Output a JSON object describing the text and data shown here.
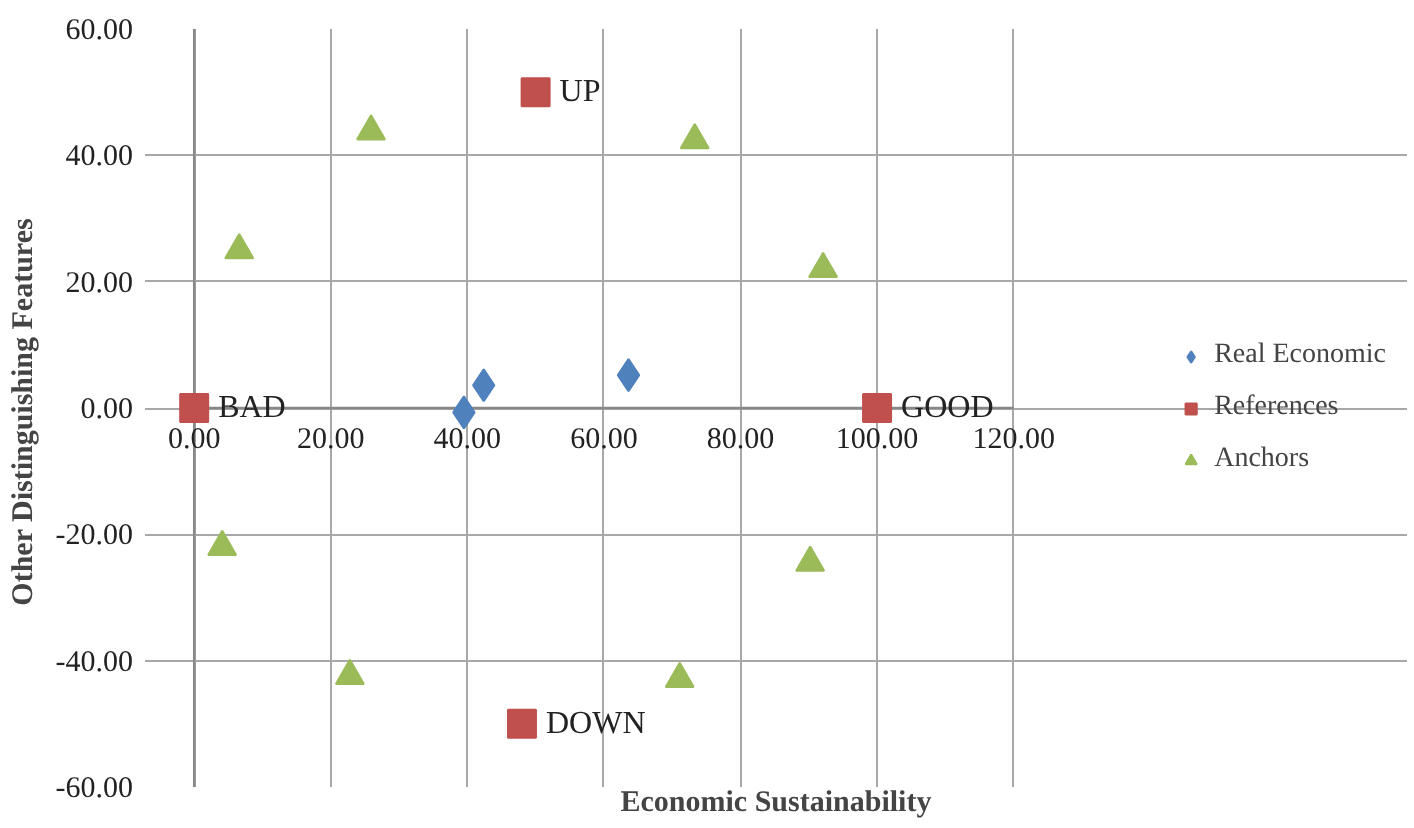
{
  "chart_data": {
    "type": "scatter",
    "xlabel": "Economic Sustainability",
    "ylabel": "Other Distinguishing  Features",
    "xlim": [
      0,
      120
    ],
    "ylim": [
      -60,
      60
    ],
    "xticks": [
      {
        "value": 0,
        "label": "0.00"
      },
      {
        "value": 20,
        "label": "20.00"
      },
      {
        "value": 40,
        "label": "40.00"
      },
      {
        "value": 60,
        "label": "60.00"
      },
      {
        "value": 80,
        "label": "80.00"
      },
      {
        "value": 100,
        "label": "100.00"
      },
      {
        "value": 120,
        "label": "120.00"
      }
    ],
    "yticks": [
      {
        "value": -60,
        "label": "-60.00"
      },
      {
        "value": -40,
        "label": "-40.00"
      },
      {
        "value": -20,
        "label": "-20.00"
      },
      {
        "value": 0,
        "label": "0.00"
      },
      {
        "value": 20,
        "label": "20.00"
      },
      {
        "value": 40,
        "label": "40.00"
      },
      {
        "value": 60,
        "label": "60.00"
      }
    ],
    "grid": true,
    "legend": "right",
    "series": [
      {
        "name": "Real Economic",
        "color": "#4f81bd",
        "marker": "diamond",
        "x": [
          39.5,
          42.4,
          63.6
        ],
        "values": [
          -0.7,
          3.6,
          5.2
        ]
      },
      {
        "name": "References",
        "color": "#c0504d",
        "marker": "square",
        "x": [
          0,
          50,
          100,
          48
        ],
        "values": [
          0,
          50,
          0,
          -50
        ]
      },
      {
        "name": "Anchors",
        "color": "#9bbb59",
        "marker": "triangle",
        "x": [
          6.6,
          25.9,
          73.3,
          92.1,
          4.1,
          90.2,
          22.8,
          71.1
        ],
        "values": [
          25,
          43.8,
          42.4,
          22,
          -22,
          -24.5,
          -42.4,
          -42.9
        ]
      }
    ],
    "annotations": [
      {
        "text": "BAD",
        "x": 0,
        "y": 0
      },
      {
        "text": "UP",
        "x": 50,
        "y": 50
      },
      {
        "text": "GOOD",
        "x": 100,
        "y": 0
      },
      {
        "text": "DOWN",
        "x": 48,
        "y": -50
      }
    ]
  }
}
